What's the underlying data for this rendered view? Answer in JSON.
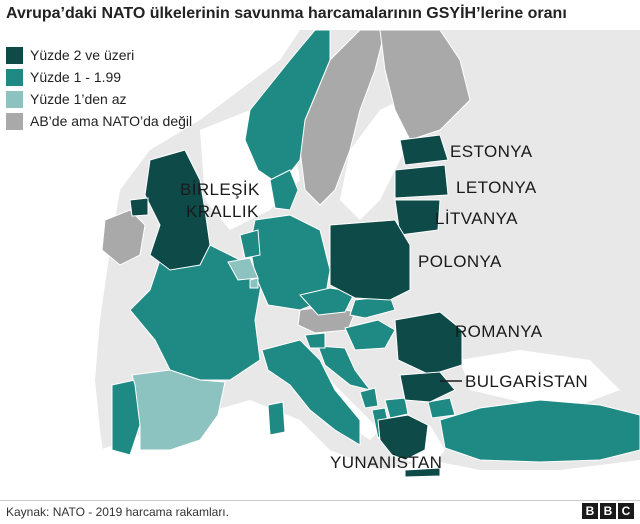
{
  "title": "Avrupa’daki NATO ülkelerinin savunma harcamalarının GSYİH’lerine oranı",
  "legend": [
    {
      "label": "Yüzde 2 ve üzeri",
      "color": "#0d4a48"
    },
    {
      "label": "Yüzde 1 - 1.99",
      "color": "#1f8a84"
    },
    {
      "label": "Yüzde 1’den az",
      "color": "#8cc2c0"
    },
    {
      "label": "AB’de ama NATO’da değil",
      "color": "#a9a9a9"
    }
  ],
  "labels": {
    "estonya": "ESTONYA",
    "letonya": "LETONYA",
    "litvanya": "LİTVANYA",
    "birlesik": "BİRLEŞİK",
    "krallik": "KRALLIK",
    "polonya": "POLONYA",
    "romanya": "ROMANYA",
    "bulgaristan": "BULGARİSTAN",
    "yunanistan": "YUNANİSTAN"
  },
  "source": "Kaynak: NATO - 2019 harcama rakamları.",
  "logo": [
    "B",
    "B",
    "C"
  ],
  "colors": {
    "sea": "#ffffff",
    "non_eu_land": "#e8e8e8",
    "border": "#ffffff"
  }
}
